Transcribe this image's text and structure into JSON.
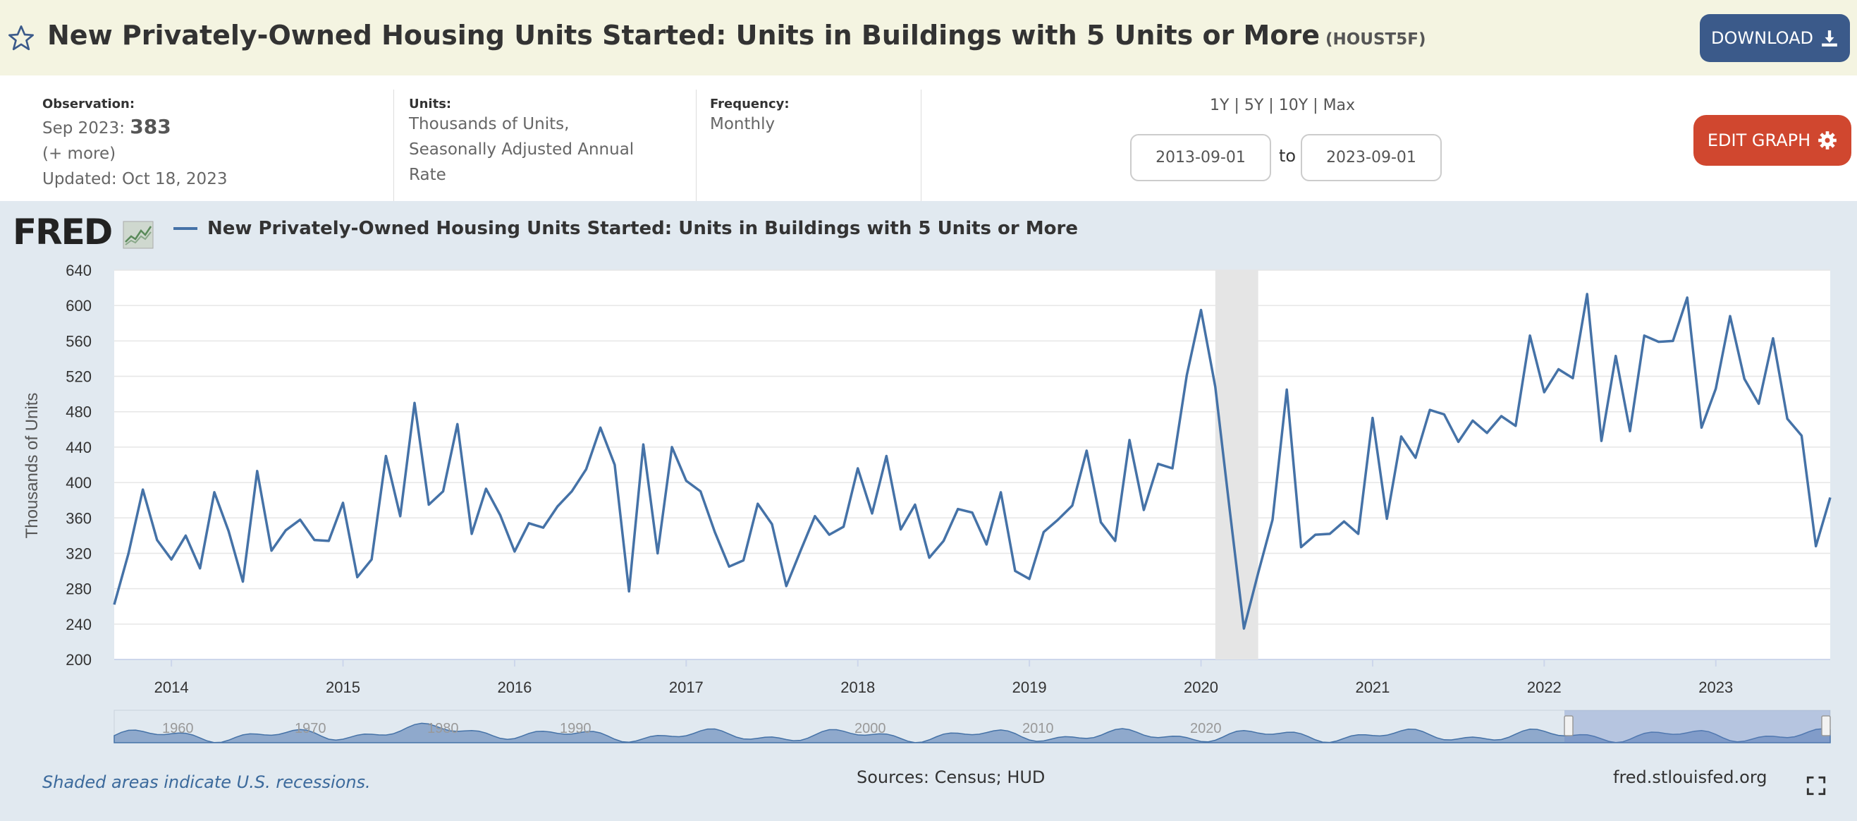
{
  "header": {
    "title": "New Privately-Owned Housing Units Started: Units in Buildings with 5 Units or More",
    "series_id": "(HOUST5F)",
    "download_label": "DOWNLOAD",
    "star_icon": "star-icon",
    "download_icon": "download-icon"
  },
  "meta": {
    "observation_label": "Observation:",
    "observation_date": "Sep 2023:",
    "observation_value": "383",
    "more": "(+ more)",
    "updated": "Updated: Oct 18, 2023",
    "units_label": "Units:",
    "units_line1": "Thousands of Units,",
    "units_line2": "Seasonally Adjusted Annual",
    "units_line3": "Rate",
    "frequency_label": "Frequency:",
    "frequency_value": "Monthly"
  },
  "controls": {
    "range_1y": "1Y",
    "range_5y": "5Y",
    "range_10y": "10Y",
    "range_max": "Max",
    "sep": "|",
    "date_from": "2013-09-01",
    "to_label": "to",
    "date_to": "2023-09-01",
    "edit_label": "EDIT GRAPH",
    "gear_icon": "gear-icon"
  },
  "fred_logo": "FRED",
  "chart_data": {
    "type": "line",
    "title": "",
    "xlabel": "",
    "ylabel": "Thousands of Units",
    "ylim": [
      200,
      640
    ],
    "yticks": [
      200,
      240,
      280,
      320,
      360,
      400,
      440,
      480,
      520,
      560,
      600,
      640
    ],
    "xticks": [
      "2014",
      "2015",
      "2016",
      "2017",
      "2018",
      "2019",
      "2020",
      "2021",
      "2022",
      "2023"
    ],
    "x_start": "2013-09",
    "x_end": "2023-09",
    "grid": true,
    "legend": "top-left",
    "series": [
      {
        "name": "New Privately-Owned Housing Units Started: Units in Buildings with 5 Units or More",
        "color": "#4572a7",
        "values": [
          262,
          320,
          392,
          335,
          313,
          340,
          303,
          389,
          345,
          288,
          413,
          323,
          346,
          358,
          335,
          334,
          377,
          293,
          313,
          430,
          362,
          490,
          375,
          390,
          466,
          342,
          393,
          363,
          322,
          354,
          349,
          373,
          390,
          415,
          462,
          420,
          277,
          443,
          320,
          440,
          402,
          390,
          344,
          305,
          312,
          376,
          353,
          283,
          323,
          362,
          341,
          350,
          416,
          365,
          430,
          347,
          375,
          315,
          334,
          370,
          366,
          330,
          389,
          300,
          291,
          344,
          358,
          374,
          436,
          355,
          334,
          448,
          369,
          421,
          416,
          521,
          595,
          508,
          370,
          235,
          298,
          358,
          505,
          327,
          341,
          342,
          356,
          342,
          473,
          359,
          452,
          428,
          482,
          477,
          446,
          470,
          456,
          475,
          464,
          566,
          502,
          528,
          518,
          613,
          447,
          543,
          458,
          566,
          559,
          560,
          609,
          462,
          506,
          588,
          517,
          489,
          563,
          472,
          453,
          328,
          383
        ]
      }
    ],
    "recession": [
      "2020-02",
      "2020-04"
    ]
  },
  "footer": {
    "recession_note": "Shaded areas indicate U.S. recessions.",
    "sources": "Sources: Census; HUD",
    "url": "fred.stlouisfed.org",
    "fullscreen_icon": "fullscreen-icon"
  },
  "navigator": {
    "labels": [
      "1960",
      "1970",
      "1980",
      "1990",
      "2000",
      "2010",
      "2020"
    ]
  }
}
